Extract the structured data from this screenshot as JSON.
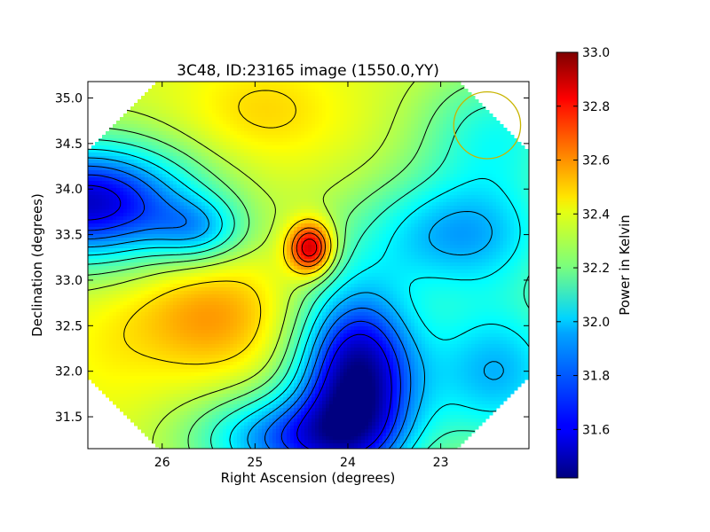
{
  "chart_data": {
    "type": "heatmap",
    "title": "3C48, ID:23165 image (1550.0,YY)",
    "xlabel": "Right Ascension (degrees)",
    "ylabel": "Declination (degrees)",
    "colorbar_label": "Power in Kelvin",
    "xlim": [
      26.8,
      22.05
    ],
    "ylim": [
      31.15,
      35.18
    ],
    "x_ticks": [
      26,
      25,
      24,
      23
    ],
    "x_tick_labels": [
      "26",
      "25",
      "24",
      "23"
    ],
    "y_ticks": [
      31.5,
      32.0,
      32.5,
      33.0,
      33.5,
      34.0,
      34.5,
      35.0
    ],
    "y_tick_labels": [
      "31.5",
      "32.0",
      "32.5",
      "33.0",
      "33.5",
      "34.0",
      "34.5",
      "35.0"
    ],
    "colorbar_range": [
      31.42,
      33.0
    ],
    "colorbar_ticks": [
      31.6,
      31.8,
      32.0,
      32.2,
      32.4,
      32.6,
      32.8,
      33.0
    ],
    "colorbar_tick_labels": [
      "31.6",
      "31.8",
      "32.0",
      "32.2",
      "32.4",
      "32.6",
      "32.8",
      "33.0"
    ],
    "colormap": "jet",
    "contours": "black lines",
    "map_footprint": "octagon",
    "baseline_value": 32.35,
    "features": [
      {
        "ra": 24.4,
        "dec": 33.35,
        "peak": 0.62,
        "sigma_ra": 0.17,
        "sigma_dec": 0.2
      },
      {
        "ra": 26.8,
        "dec": 33.85,
        "peak": -0.82,
        "sigma_ra": 0.8,
        "sigma_dec": 0.45
      },
      {
        "ra": 25.6,
        "dec": 33.55,
        "peak": -0.3,
        "sigma_ra": 0.35,
        "sigma_dec": 0.25
      },
      {
        "ra": 23.9,
        "dec": 31.95,
        "peak": -0.9,
        "sigma_ra": 0.45,
        "sigma_dec": 0.7
      },
      {
        "ra": 24.6,
        "dec": 31.25,
        "peak": -0.55,
        "sigma_ra": 0.7,
        "sigma_dec": 0.35
      },
      {
        "ra": 22.8,
        "dec": 33.5,
        "peak": -0.45,
        "sigma_ra": 0.75,
        "sigma_dec": 0.45
      },
      {
        "ra": 22.4,
        "dec": 32.0,
        "peak": -0.45,
        "sigma_ra": 0.6,
        "sigma_dec": 0.6
      },
      {
        "ra": 24.9,
        "dec": 34.85,
        "peak": 0.12,
        "sigma_ra": 0.6,
        "sigma_dec": 0.4
      },
      {
        "ra": 25.5,
        "dec": 32.6,
        "peak": 0.22,
        "sigma_ra": 0.6,
        "sigma_dec": 0.45
      },
      {
        "ra": 26.6,
        "dec": 32.2,
        "peak": 0.05,
        "sigma_ra": 0.4,
        "sigma_dec": 0.5
      },
      {
        "ra": 22.4,
        "dec": 34.6,
        "peak": -0.3,
        "sigma_ra": 0.6,
        "sigma_dec": 0.5
      }
    ],
    "contour_levels": [
      31.6,
      31.7,
      31.8,
      31.9,
      32.0,
      32.1,
      32.2,
      32.3,
      32.45,
      32.6,
      32.7,
      32.8,
      32.9
    ],
    "beam_marker": {
      "ra": 22.5,
      "dec": 34.7,
      "radius_deg": 0.36,
      "color": "#c8b400"
    }
  }
}
